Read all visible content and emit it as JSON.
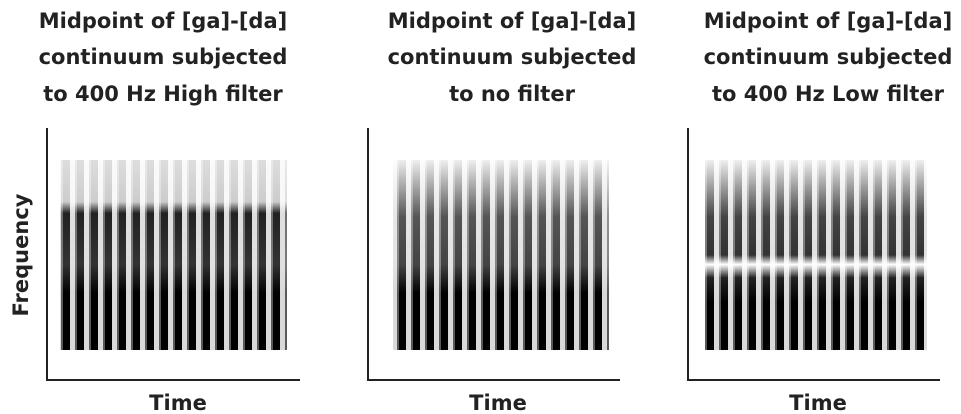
{
  "panels": [
    {
      "title": [
        "Midpoint of [ga]-[da]",
        "continuum subjected",
        "to 400 Hz High filter"
      ],
      "x_label": "Time"
    },
    {
      "title": [
        "Midpoint of [ga]-[da]",
        "continuum subjected",
        "to no filter"
      ],
      "x_label": "Time"
    },
    {
      "title": [
        "Midpoint of [ga]-[da]",
        "continuum subjected",
        "to 400 Hz Low filter"
      ],
      "x_label": "Time"
    }
  ],
  "y_label": "Frequency"
}
